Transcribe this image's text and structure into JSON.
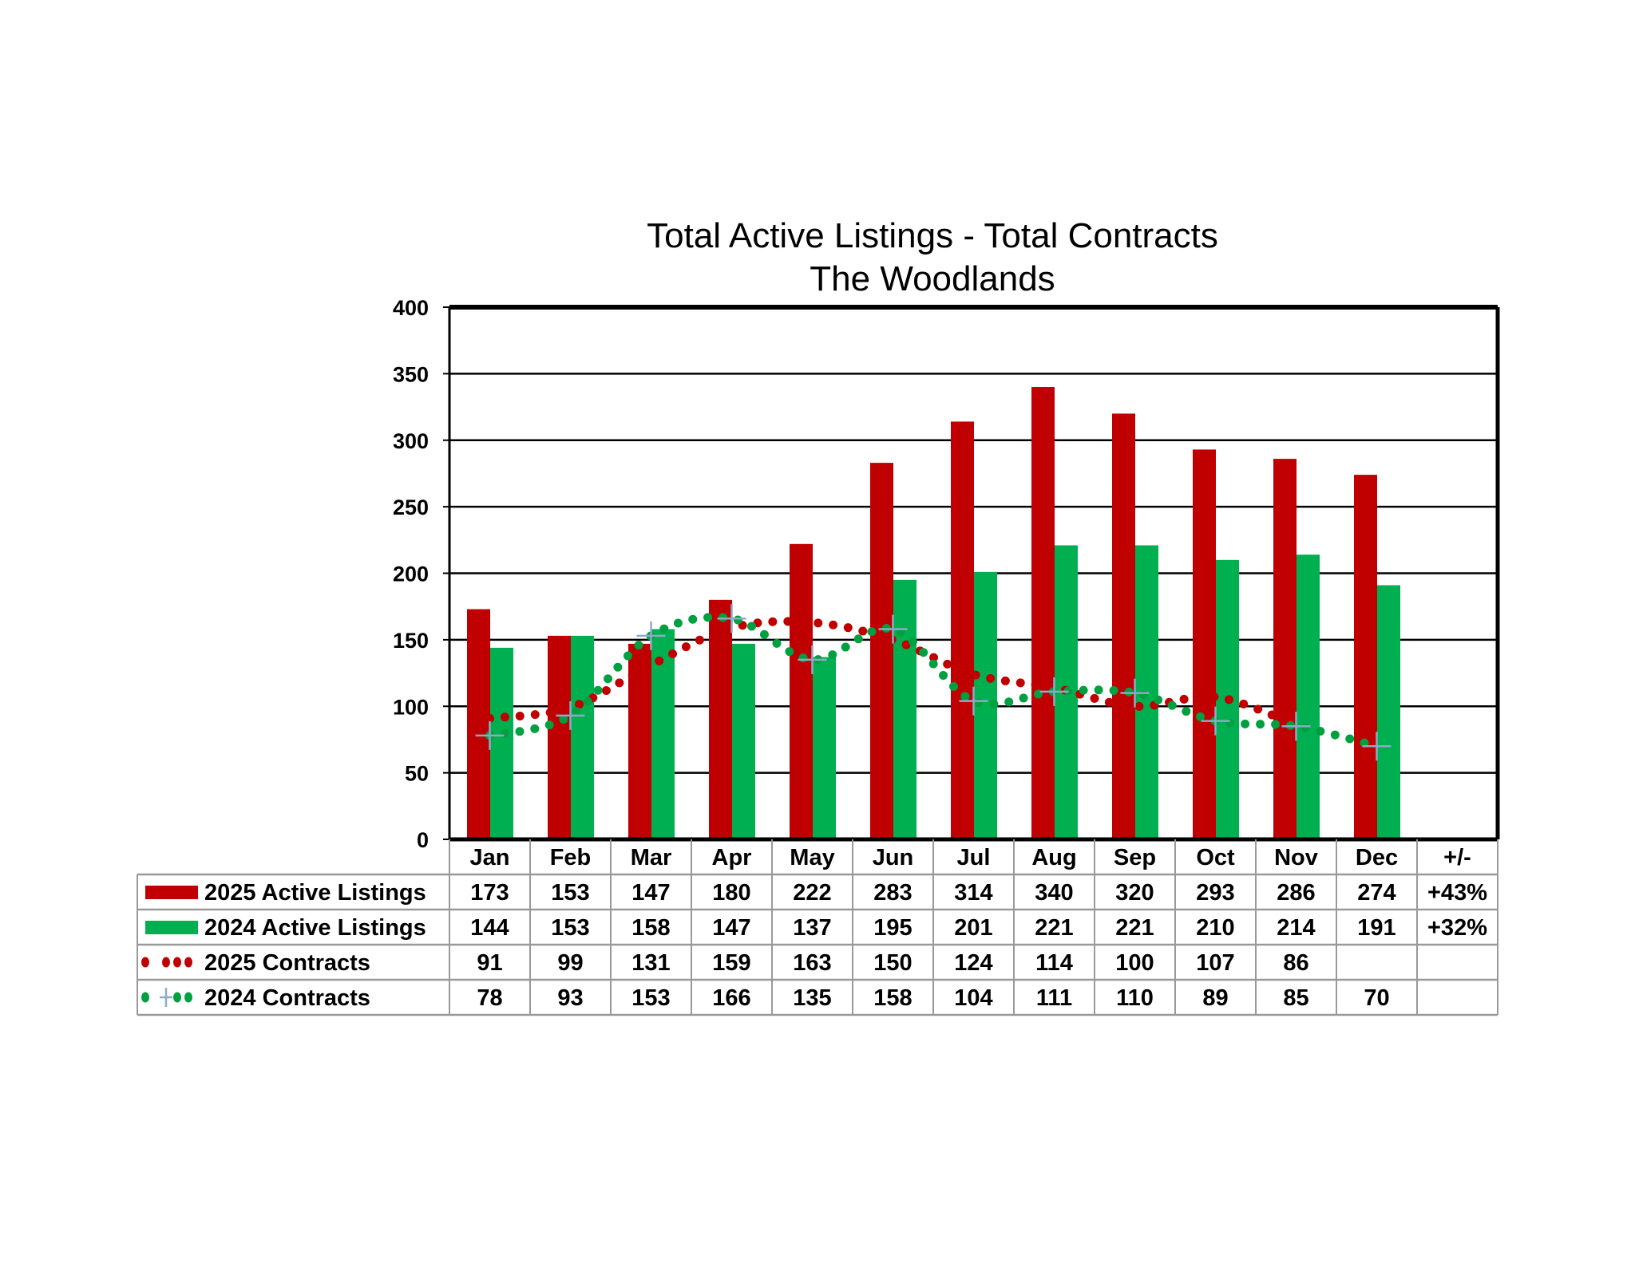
{
  "chart_data": {
    "type": "bar",
    "title": "Total Active Listings - Total Contracts",
    "subtitle": "The Woodlands",
    "xlabel": "",
    "ylabel": "",
    "ylim": [
      0,
      400
    ],
    "yticks": [
      0,
      50,
      100,
      150,
      200,
      250,
      300,
      350,
      400
    ],
    "grid": true,
    "legend_placement": "data-table-below",
    "categories": [
      "Jan",
      "Feb",
      "Mar",
      "Apr",
      "May",
      "Jun",
      "Jul",
      "Aug",
      "Sep",
      "Oct",
      "Nov",
      "Dec"
    ],
    "change_header": "+/-",
    "series": [
      {
        "name": "2025 Active Listings",
        "kind": "bar",
        "color": "#C00000",
        "values": [
          173,
          153,
          147,
          180,
          222,
          283,
          314,
          340,
          320,
          293,
          286,
          274
        ],
        "change": "+43%"
      },
      {
        "name": "2024 Active Listings",
        "kind": "bar",
        "color": "#00B050",
        "values": [
          144,
          153,
          158,
          147,
          137,
          195,
          201,
          221,
          221,
          210,
          214,
          191
        ],
        "change": "+32%"
      },
      {
        "name": "2025 Contracts",
        "kind": "dotted-line",
        "color": "#C00000",
        "values": [
          91,
          99,
          131,
          159,
          163,
          150,
          124,
          114,
          100,
          107,
          86,
          null
        ],
        "change": ""
      },
      {
        "name": "2024 Contracts",
        "kind": "dotted-line",
        "color": "#00A040",
        "marker": "cross",
        "values": [
          78,
          93,
          153,
          166,
          135,
          158,
          104,
          111,
          110,
          89,
          85,
          70
        ],
        "change": ""
      }
    ]
  }
}
